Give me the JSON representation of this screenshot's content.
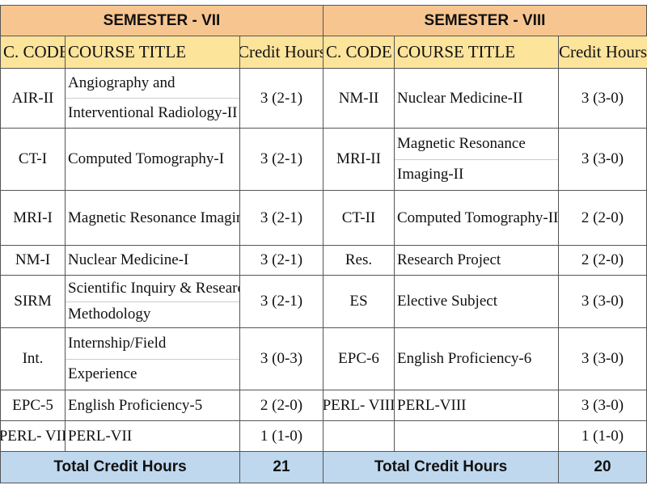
{
  "semesters": [
    {
      "title": "SEMESTER - VII",
      "headers": [
        "C. CODE",
        "COURSE TITLE",
        "Credit Hours"
      ],
      "rows": [
        {
          "code": "AIR-II",
          "title": [
            "Angiography and",
            "Interventional Radiology-II"
          ],
          "credit": "3 (2-1)"
        },
        {
          "code": "CT-I",
          "title": [
            "Computed Tomography-I"
          ],
          "credit": "3 (2-1)"
        },
        {
          "code": "MRI-I",
          "title": [
            "Magnetic Resonance Imaging I"
          ],
          "credit": "3 (2-1)"
        },
        {
          "code": "NM-I",
          "title": [
            "Nuclear Medicine-I"
          ],
          "credit": "3 (2-1)"
        },
        {
          "code": "SIRM",
          "title": [
            "Scientific Inquiry & Research",
            "Methodology"
          ],
          "credit": "3 (2-1)"
        },
        {
          "code": "Int.",
          "title": [
            "Internship/Field",
            "Experience"
          ],
          "credit": "3 (0-3)"
        },
        {
          "code": "EPC-5",
          "title": [
            "English Proficiency-5"
          ],
          "credit": "2 (2-0)"
        },
        {
          "code": "PERL- VII",
          "title": [
            "PERL-VII"
          ],
          "credit": "1 (1-0)"
        }
      ],
      "total_label": "Total Credit Hours",
      "total": "21"
    },
    {
      "title": "SEMESTER - VIII",
      "headers": [
        "C. CODE",
        "COURSE TITLE",
        "Credit Hours"
      ],
      "rows": [
        {
          "code": "NM-II",
          "title": [
            "Nuclear Medicine-II"
          ],
          "credit": "3 (3-0)"
        },
        {
          "code": "MRI-II",
          "title": [
            "Magnetic Resonance",
            "Imaging-II"
          ],
          "credit": "3 (3-0)"
        },
        {
          "code": "CT-II",
          "title": [
            "Computed Tomography-II"
          ],
          "credit": "2 (2-0)"
        },
        {
          "code": "Res.",
          "title": [
            "Research Project"
          ],
          "credit": "2 (2-0)"
        },
        {
          "code": "ES",
          "title": [
            "Elective Subject"
          ],
          "credit": "3 (3-0)"
        },
        {
          "code": "EPC-6",
          "title": [
            "English Proficiency-6"
          ],
          "credit": "3 (3-0)"
        },
        {
          "code": "PERL- VIII",
          "title": [
            "PERL-VIII"
          ],
          "credit": "3 (3-0)"
        },
        {
          "code": null,
          "title": null,
          "credit": "1 (1-0)"
        }
      ],
      "total_label": "Total Credit Hours",
      "total": "20"
    }
  ]
}
